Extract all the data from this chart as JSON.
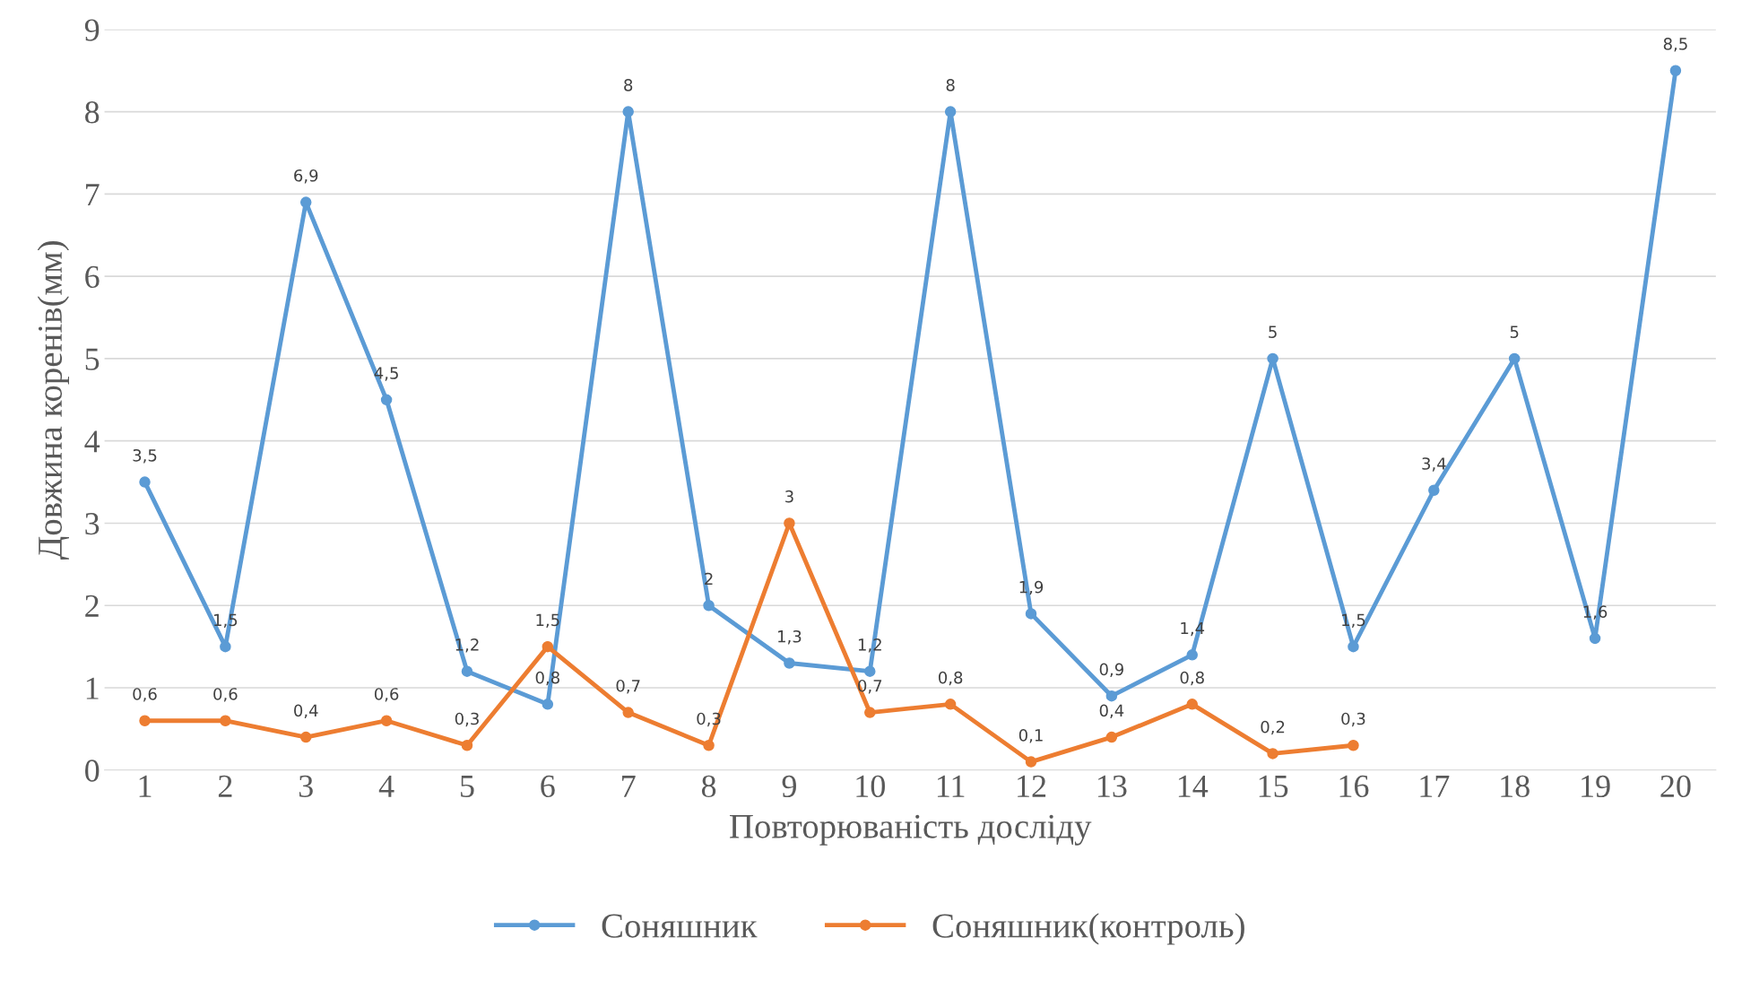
{
  "chart_data": {
    "type": "line",
    "xlabel": "Повторюваність досліду",
    "ylabel": "Довжина коренів(мм)",
    "categories": [
      "1",
      "2",
      "3",
      "4",
      "5",
      "6",
      "7",
      "8",
      "9",
      "10",
      "11",
      "12",
      "13",
      "14",
      "15",
      "16",
      "17",
      "18",
      "19",
      "20"
    ],
    "series": [
      {
        "name": "Соняшник",
        "color": "#5b9bd5",
        "values": [
          3.5,
          1.5,
          6.9,
          4.5,
          1.2,
          0.8,
          8,
          2,
          1.3,
          1.2,
          8,
          1.9,
          0.9,
          1.4,
          5,
          1.5,
          3.4,
          5,
          1.6,
          8.5
        ],
        "value_labels": [
          "3,5",
          "1,5",
          "6,9",
          "4,5",
          "1,2",
          "0,8",
          "8",
          "2",
          "1,3",
          "1,2",
          "8",
          "1,9",
          "0,9",
          "1,4",
          "5",
          "1,5",
          "3,4",
          "5",
          "1,6",
          "8,5"
        ]
      },
      {
        "name": "Соняшник(контроль)",
        "color": "#ed7d31",
        "values": [
          0.6,
          0.6,
          0.4,
          0.6,
          0.3,
          1.5,
          0.7,
          0.3,
          3,
          0.7,
          0.8,
          0.1,
          0.4,
          0.8,
          0.2,
          0.3,
          null,
          null,
          null,
          null
        ],
        "value_labels": [
          "0,6",
          "0,6",
          "0,4",
          "0,6",
          "0,3",
          "1,5",
          "0,7",
          "0,3",
          "3",
          "0,7",
          "0,8",
          "0,1",
          "0,4",
          "0,8",
          "0,2",
          "0,3",
          null,
          null,
          null,
          null
        ]
      }
    ],
    "ylim": [
      0,
      9
    ],
    "yticks": [
      0,
      1,
      2,
      3,
      4,
      5,
      6,
      7,
      8,
      9
    ],
    "grid": "y",
    "legend": "bottom",
    "marker": "circle",
    "line_style": "solid"
  }
}
